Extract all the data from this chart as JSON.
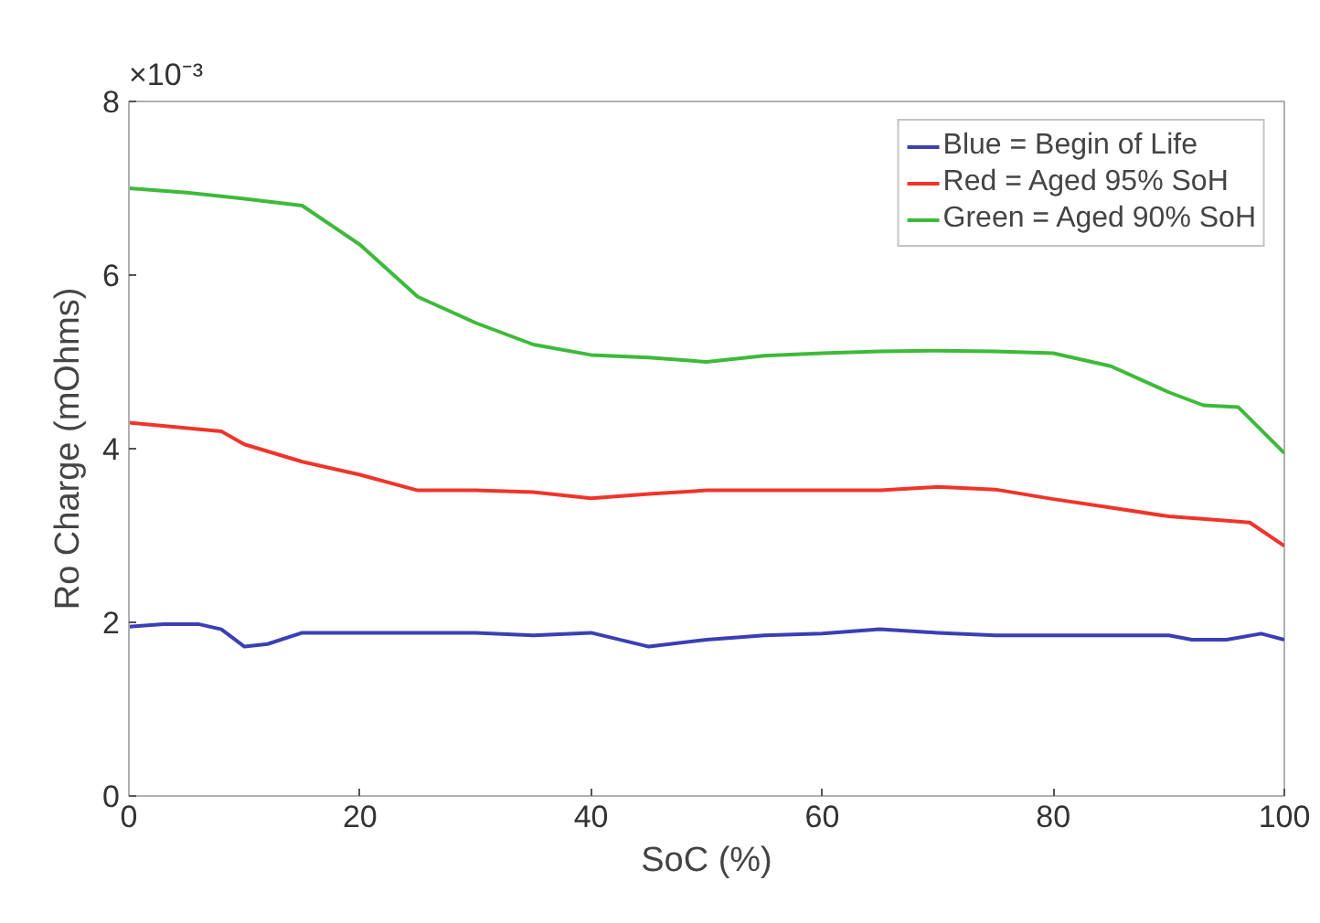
{
  "chart_data": {
    "type": "line",
    "xlabel": "SoC (%)",
    "ylabel": "Ro Charge (mOhms)",
    "annotations": [
      "×10⁻³"
    ],
    "xlim": [
      0,
      100
    ],
    "xticks": [
      0,
      20,
      40,
      60,
      80,
      100
    ],
    "ylim": [
      0,
      8
    ],
    "yticks": [
      0,
      2,
      4,
      6,
      8
    ],
    "grid": false,
    "legend": "top right",
    "line_style": "solid",
    "marker": "none",
    "series": [
      {
        "name": "Blue = Begin of Life",
        "color": "#3b3fb5",
        "x": [
          0,
          3,
          6,
          8,
          10,
          12,
          15,
          20,
          25,
          30,
          35,
          40,
          45,
          50,
          55,
          60,
          65,
          70,
          75,
          80,
          85,
          90,
          92,
          95,
          98,
          100
        ],
        "values": [
          1.95,
          1.98,
          1.98,
          1.92,
          1.72,
          1.75,
          1.88,
          1.88,
          1.88,
          1.88,
          1.85,
          1.88,
          1.72,
          1.8,
          1.85,
          1.87,
          1.92,
          1.88,
          1.85,
          1.85,
          1.85,
          1.85,
          1.8,
          1.8,
          1.87,
          1.8
        ]
      },
      {
        "name": "Red = Aged 95% SoH",
        "color": "#f0342a",
        "x": [
          0,
          4,
          8,
          10,
          15,
          20,
          25,
          30,
          35,
          40,
          45,
          50,
          55,
          60,
          65,
          70,
          75,
          80,
          85,
          90,
          95,
          97,
          100
        ],
        "values": [
          4.3,
          4.25,
          4.2,
          4.05,
          3.85,
          3.7,
          3.52,
          3.52,
          3.5,
          3.43,
          3.48,
          3.52,
          3.52,
          3.52,
          3.52,
          3.56,
          3.53,
          3.42,
          3.32,
          3.22,
          3.17,
          3.15,
          2.88
        ]
      },
      {
        "name": "Green = Aged 90% SoH",
        "color": "#3dba3a",
        "x": [
          0,
          5,
          10,
          15,
          20,
          25,
          30,
          35,
          40,
          45,
          50,
          55,
          60,
          65,
          70,
          75,
          80,
          85,
          90,
          93,
          96,
          100
        ],
        "values": [
          7.0,
          6.95,
          6.88,
          6.8,
          6.35,
          5.75,
          5.45,
          5.2,
          5.08,
          5.05,
          5.0,
          5.07,
          5.1,
          5.12,
          5.13,
          5.12,
          5.1,
          4.95,
          4.65,
          4.5,
          4.48,
          3.95
        ]
      }
    ]
  }
}
